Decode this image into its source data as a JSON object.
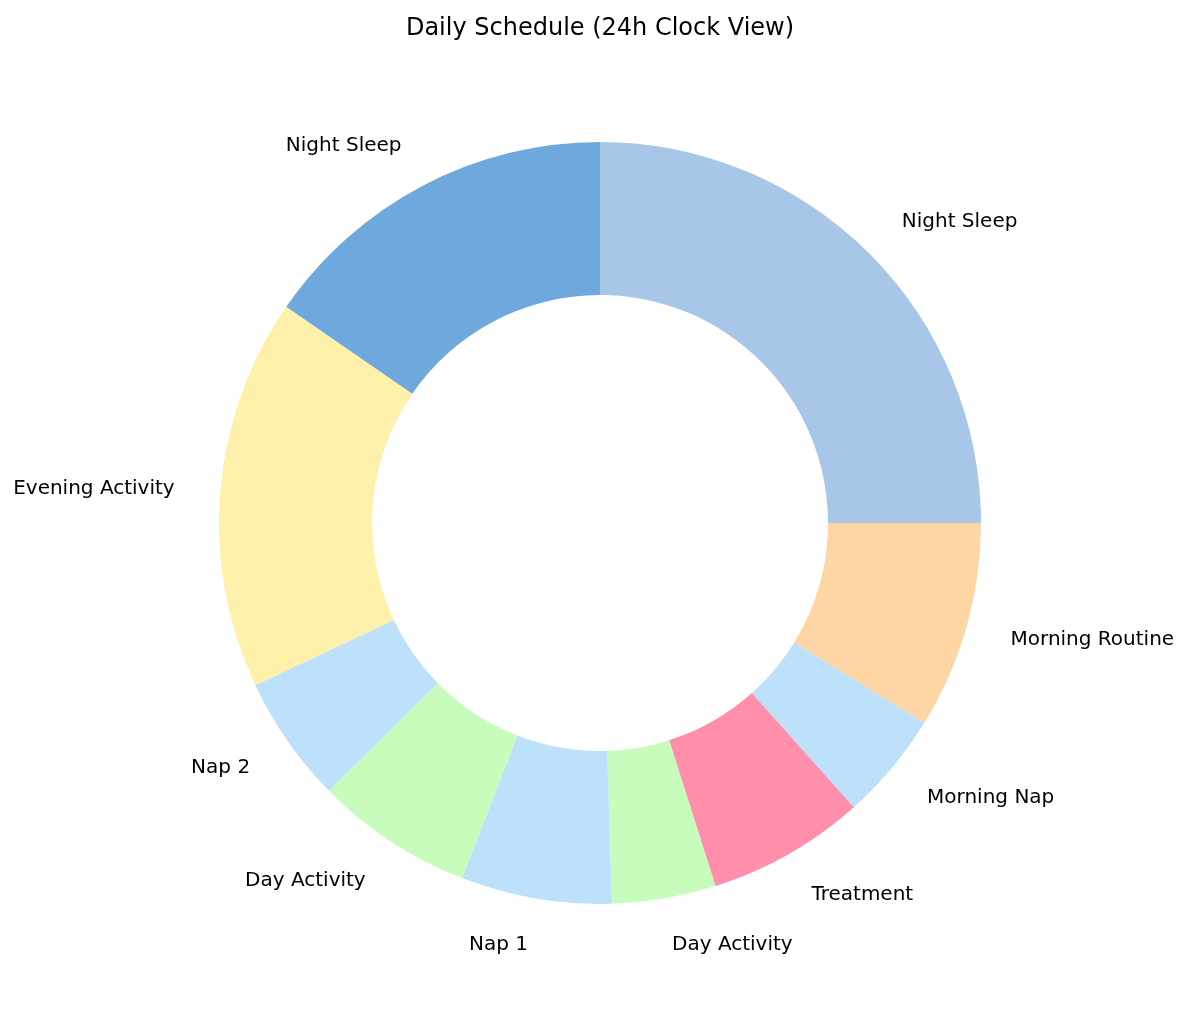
{
  "chart_data": {
    "type": "donut",
    "title": "Daily Schedule (24h Clock View)",
    "categories": [
      "Night Sleep",
      "Morning Routine",
      "Morning Nap",
      "Treatment",
      "Day Activity",
      "Nap 1",
      "Day Activity",
      "Nap 2",
      "Evening Activity",
      "Night Sleep"
    ],
    "values": [
      25,
      8.8,
      4.6,
      6.7,
      4.4,
      6.4,
      6.7,
      5.4,
      16.6,
      15.4
    ],
    "colors": [
      "#a8c6e8",
      "#fed6a5",
      "#bde0fb",
      "#ff8fab",
      "#c8fcbd",
      "#bde0fb",
      "#c8fcbd",
      "#bde0fb",
      "#fff1aa",
      "#6fa8dc"
    ]
  }
}
